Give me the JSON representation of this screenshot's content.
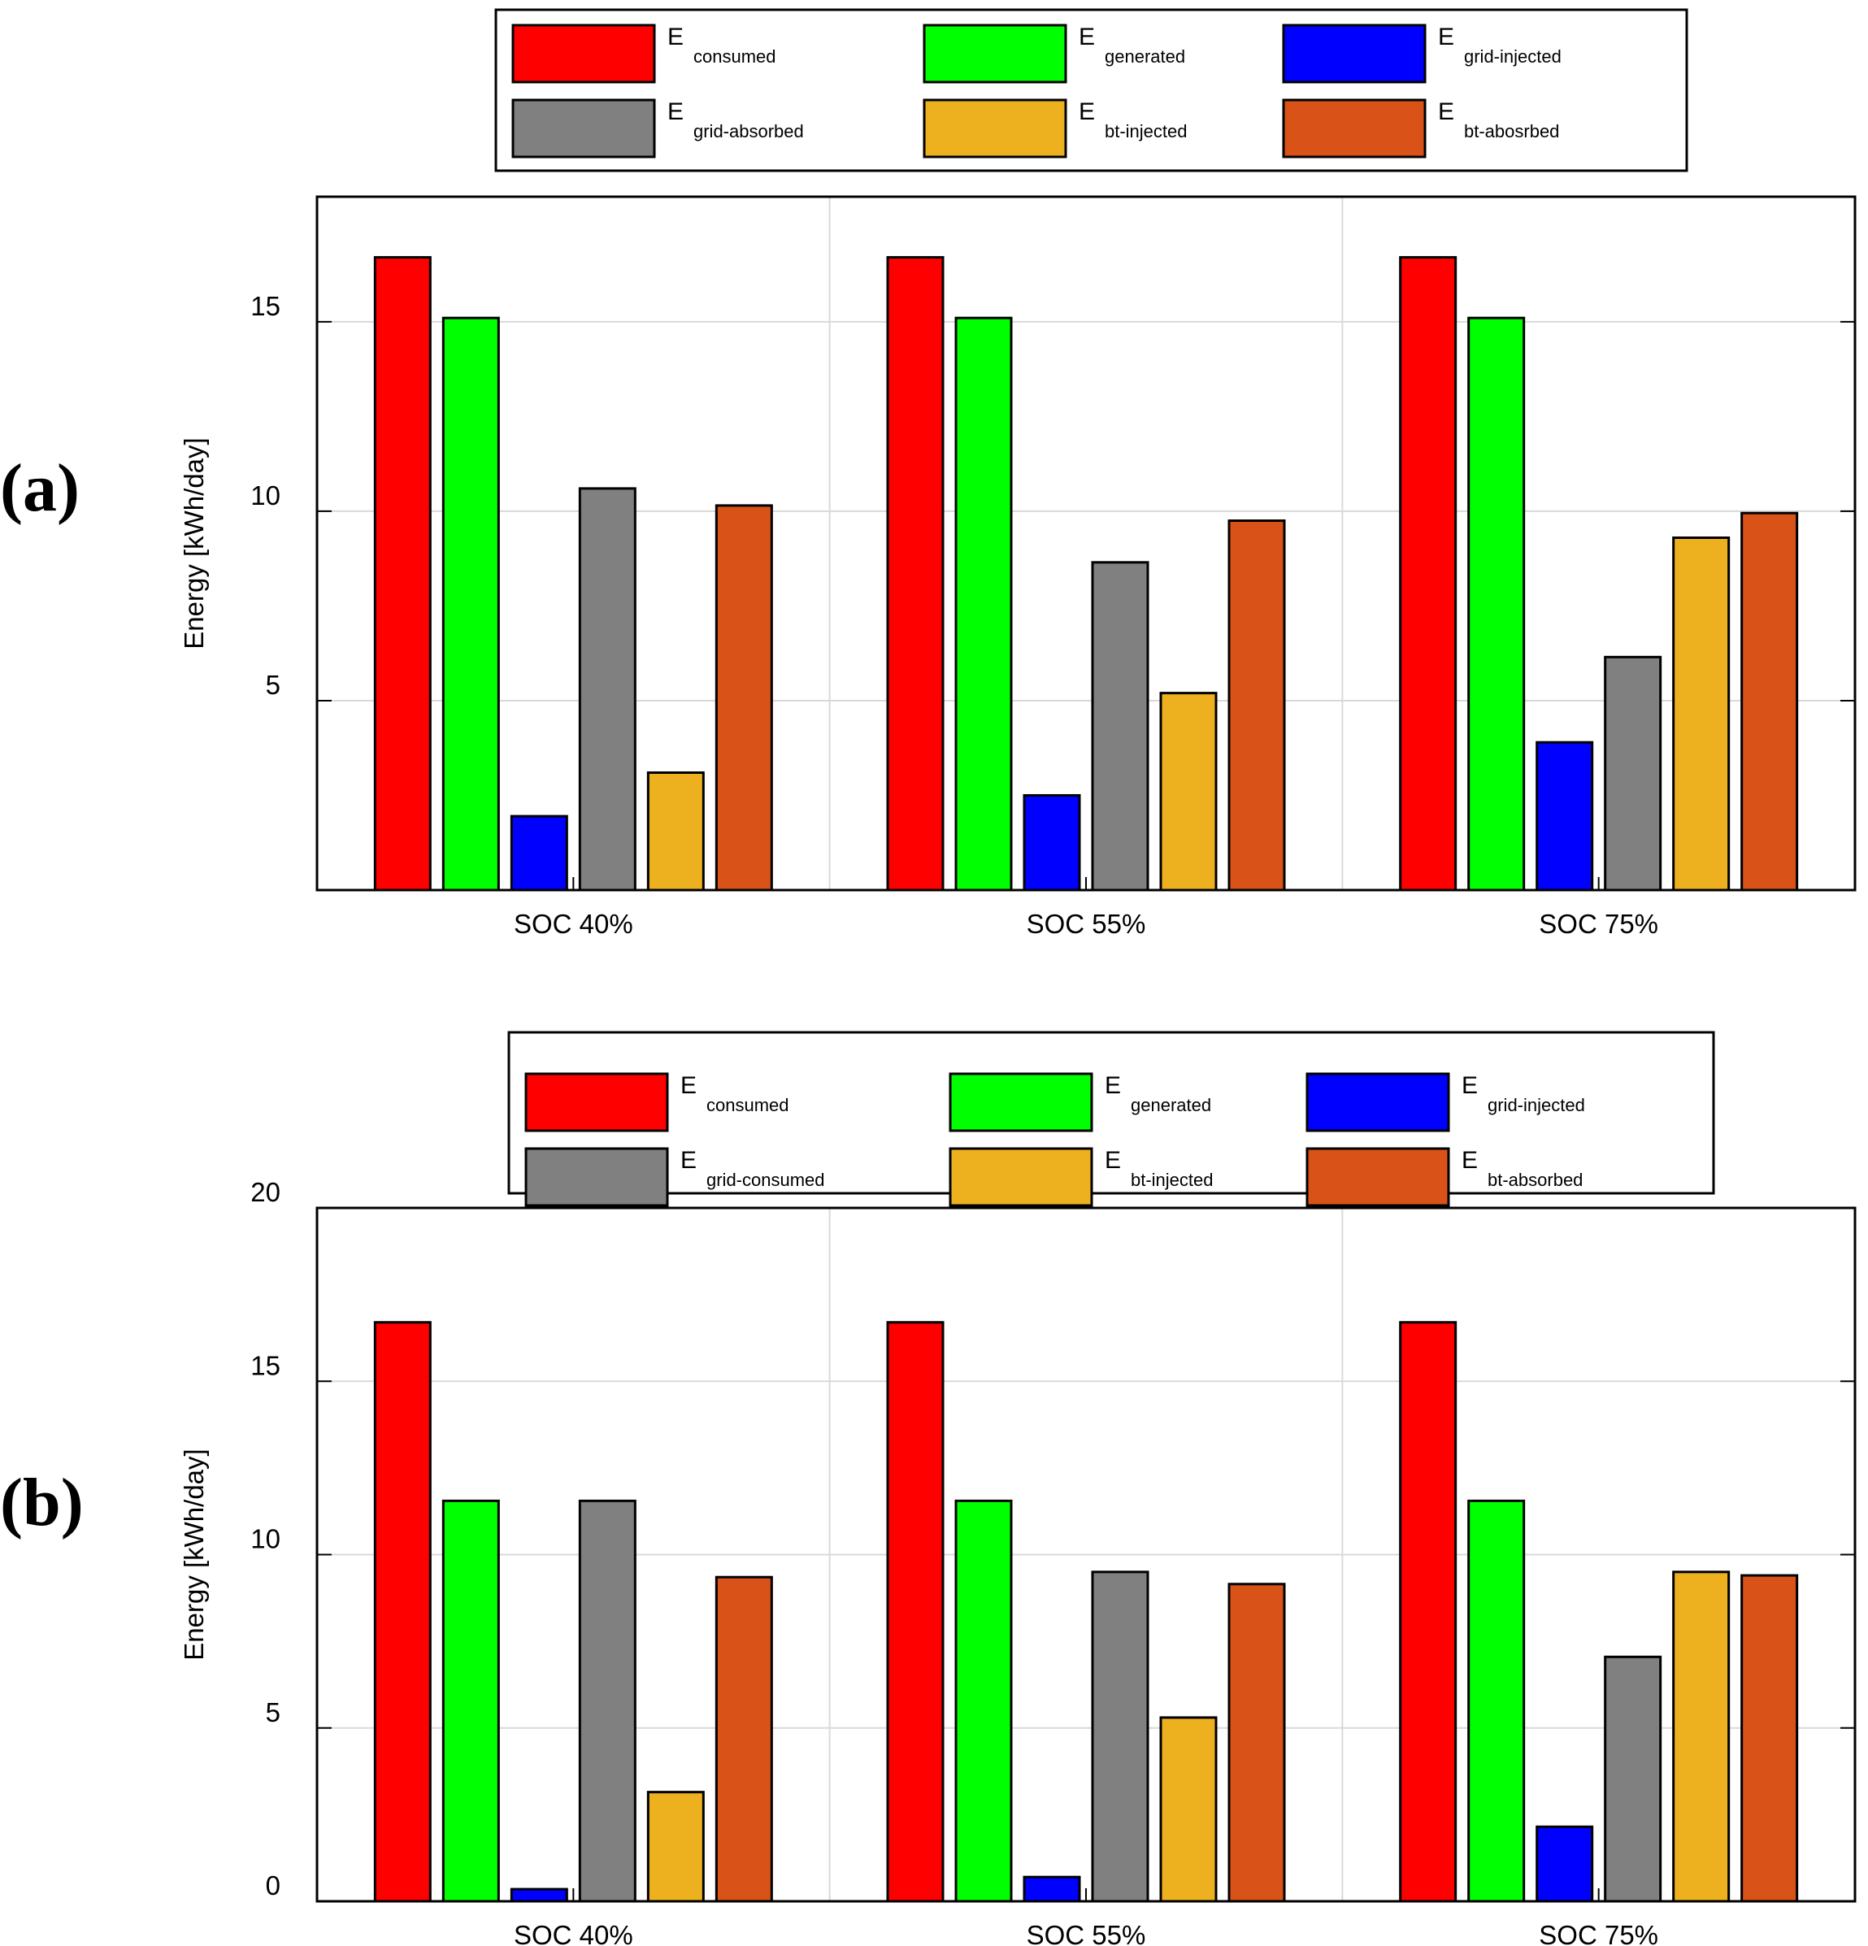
{
  "figure": {
    "panels": [
      {
        "label": "(a)",
        "chart_data": {
          "type": "bar",
          "title": "",
          "xlabel": "",
          "ylabel": "Energy [kWh/day]",
          "ylim": [
            0,
            18.3
          ],
          "yticks": [
            5,
            10,
            15
          ],
          "grid": true,
          "legend_position": "top",
          "categories": [
            "SOC 40%",
            "SOC 55%",
            "SOC 75%"
          ],
          "series": [
            {
              "name": "E",
              "sub": "consumed",
              "color": "#ff0000",
              "values": [
                16.7,
                16.7,
                16.7
              ]
            },
            {
              "name": "E",
              "sub": "generated",
              "color": "#00ff00",
              "values": [
                15.1,
                15.1,
                15.1
              ]
            },
            {
              "name": "E",
              "sub": "grid-injected",
              "color": "#0000ff",
              "values": [
                1.95,
                2.5,
                3.9
              ]
            },
            {
              "name": "E",
              "sub": "grid-absorbed",
              "color": "#808080",
              "values": [
                10.6,
                8.65,
                6.15
              ]
            },
            {
              "name": "E",
              "sub": "bt-injected",
              "color": "#edb120",
              "values": [
                3.1,
                5.2,
                9.3
              ]
            },
            {
              "name": "E",
              "sub": "bt-abosrbed",
              "color": "#d95319",
              "values": [
                10.15,
                9.75,
                9.95
              ]
            }
          ]
        }
      },
      {
        "label": "(b)",
        "chart_data": {
          "type": "bar",
          "title": "",
          "xlabel": "",
          "ylabel": "Energy [kWh/day]",
          "ylim": [
            0,
            20
          ],
          "yticks": [
            0,
            5,
            10,
            15,
            20
          ],
          "grid": true,
          "legend_position": "top",
          "categories": [
            "SOC 40%",
            "SOC 55%",
            "SOC 75%"
          ],
          "series": [
            {
              "name": "E",
              "sub": "consumed",
              "color": "#ff0000",
              "values": [
                16.7,
                16.7,
                16.7
              ]
            },
            {
              "name": "E",
              "sub": "generated",
              "color": "#00ff00",
              "values": [
                11.55,
                11.55,
                11.55
              ]
            },
            {
              "name": "E",
              "sub": "grid-injected",
              "color": "#0000ff",
              "values": [
                0.35,
                0.7,
                2.15
              ]
            },
            {
              "name": "E",
              "sub": "grid-consumed",
              "color": "#808080",
              "values": [
                11.55,
                9.5,
                7.05
              ]
            },
            {
              "name": "E",
              "sub": "bt-injected",
              "color": "#edb120",
              "values": [
                3.15,
                5.3,
                9.5
              ]
            },
            {
              "name": "E",
              "sub": "bt-absorbed",
              "color": "#d95319",
              "values": [
                9.35,
                9.15,
                9.4
              ]
            }
          ]
        }
      }
    ]
  }
}
